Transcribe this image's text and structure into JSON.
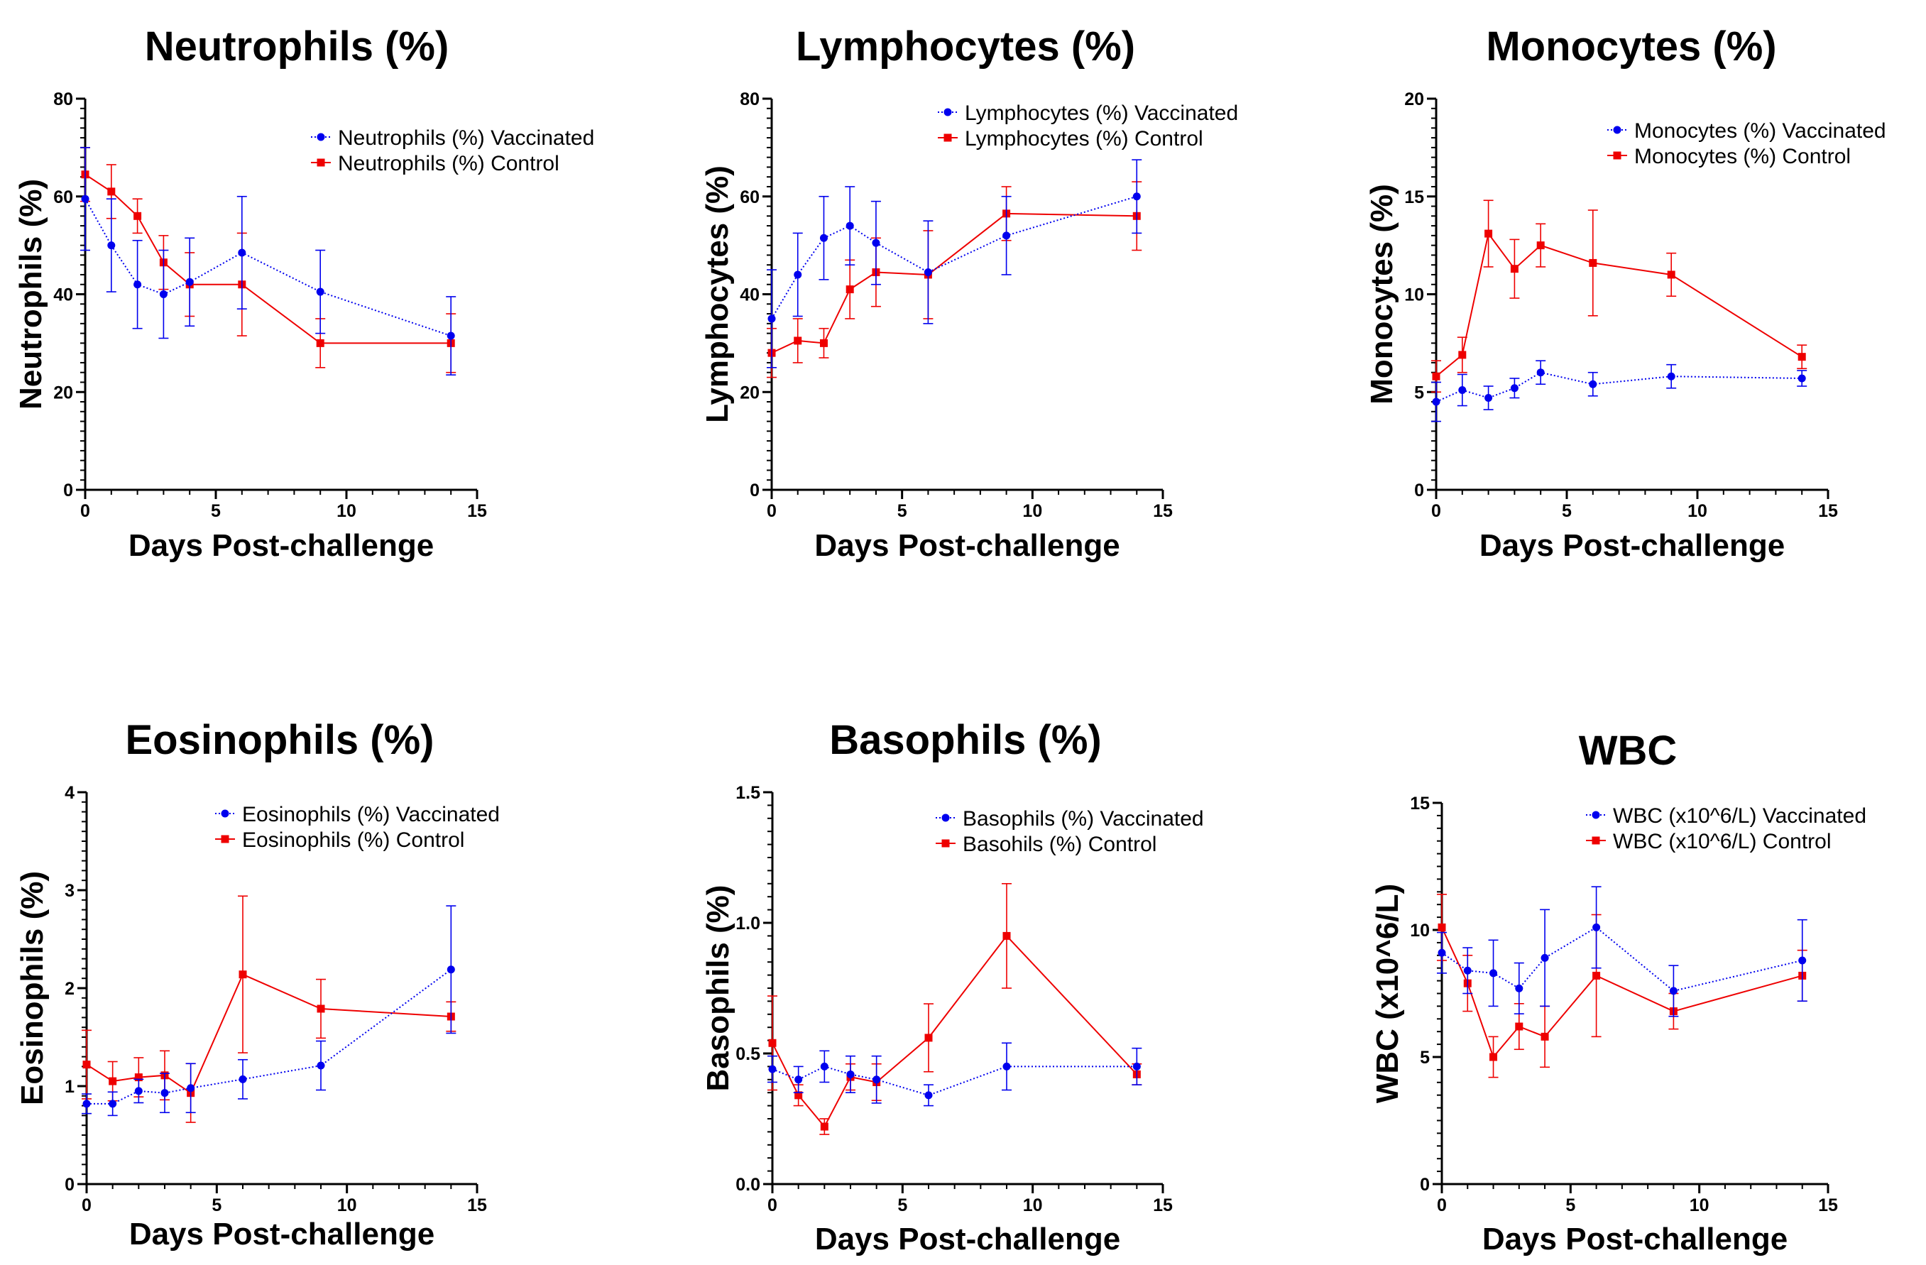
{
  "chart_data": [
    {
      "type": "line",
      "title": "Neutrophils (%)",
      "xlabel": "Days Post-challenge",
      "ylabel": "Neutrophils (%)",
      "xlim": [
        0,
        15
      ],
      "ylim": [
        0,
        80
      ],
      "xticks": [
        "0",
        "5",
        "10",
        "15"
      ],
      "yticks": [
        "0",
        "20",
        "40",
        "60",
        "80"
      ],
      "x": [
        0,
        1,
        2,
        3,
        4,
        6,
        9,
        14
      ],
      "legend_position": "top-right",
      "series": [
        {
          "name": "Neutrophils (%) Vaccinated",
          "color": "#0000ee",
          "marker": "circle",
          "dash": "dotted",
          "values": [
            59.5,
            50,
            42,
            40,
            42.5,
            48.5,
            40.5,
            31.5
          ],
          "errors": [
            10.5,
            9.5,
            9,
            9,
            9,
            11.5,
            8.5,
            8
          ]
        },
        {
          "name": "Neutrophils (%) Control",
          "color": "#ee0000",
          "marker": "square",
          "dash": "solid",
          "values": [
            64.5,
            61,
            56,
            46.5,
            42,
            42,
            30,
            30
          ],
          "errors": [
            5.5,
            5.5,
            3.5,
            5.5,
            6.5,
            10.5,
            5,
            6
          ]
        }
      ]
    },
    {
      "type": "line",
      "title": "Lymphocytes (%)",
      "xlabel": "Days Post-challenge",
      "ylabel": "Lymphocytes (%)",
      "xlim": [
        0,
        15
      ],
      "ylim": [
        0,
        80
      ],
      "xticks": [
        "0",
        "5",
        "10",
        "15"
      ],
      "yticks": [
        "0",
        "20",
        "40",
        "60",
        "80"
      ],
      "x": [
        0,
        1,
        2,
        3,
        4,
        6,
        9,
        14
      ],
      "legend_position": "top-right",
      "series": [
        {
          "name": "Lymphocytes (%) Vaccinated",
          "color": "#0000ee",
          "marker": "circle",
          "dash": "dotted",
          "values": [
            35,
            44,
            51.5,
            54,
            50.5,
            44.5,
            52,
            60
          ],
          "errors": [
            10,
            8.5,
            8.5,
            8,
            8.5,
            10.5,
            8,
            7.5
          ]
        },
        {
          "name": "Lymphocytes (%) Control",
          "color": "#ee0000",
          "marker": "square",
          "dash": "solid",
          "values": [
            28,
            30.5,
            30,
            41,
            44.5,
            44,
            56.5,
            56
          ],
          "errors": [
            5,
            4.5,
            3,
            6,
            7,
            9,
            5.5,
            7
          ]
        }
      ]
    },
    {
      "type": "line",
      "title": "Monocytes (%)",
      "xlabel": "Days Post-challenge",
      "ylabel": "Monocytes (%)",
      "xlim": [
        0,
        15
      ],
      "ylim": [
        0,
        20
      ],
      "xticks": [
        "0",
        "5",
        "10",
        "15"
      ],
      "yticks": [
        "0",
        "5",
        "10",
        "15",
        "20"
      ],
      "x": [
        0,
        1,
        2,
        3,
        4,
        6,
        9,
        14
      ],
      "legend_position": "top-right",
      "series": [
        {
          "name": "Monocytes (%) Vaccinated",
          "color": "#0000ee",
          "marker": "circle",
          "dash": "dotted",
          "values": [
            4.5,
            5.1,
            4.7,
            5.2,
            6.0,
            5.4,
            5.8,
            5.7
          ],
          "errors": [
            1.0,
            0.8,
            0.6,
            0.5,
            0.6,
            0.6,
            0.6,
            0.4
          ]
        },
        {
          "name": "Monocytes (%) Control",
          "color": "#ee0000",
          "marker": "square",
          "dash": "solid",
          "values": [
            5.8,
            6.9,
            13.1,
            11.3,
            12.5,
            11.6,
            11.0,
            6.8
          ],
          "errors": [
            0.8,
            0.9,
            1.7,
            1.5,
            1.1,
            2.7,
            1.1,
            0.6
          ]
        }
      ]
    },
    {
      "type": "line",
      "title": "Eosinophils (%)",
      "xlabel": "Days Post-challenge",
      "ylabel": "Eosinophils (%)",
      "xlim": [
        0,
        15
      ],
      "ylim": [
        0,
        4
      ],
      "xticks": [
        "0",
        "5",
        "10",
        "15"
      ],
      "yticks": [
        "0",
        "1",
        "2",
        "3",
        "4"
      ],
      "x": [
        0,
        1,
        2,
        3,
        4,
        6,
        9,
        14
      ],
      "legend_position": "top-right",
      "series": [
        {
          "name": "Eosinophils (%) Vaccinated",
          "color": "#0000ee",
          "marker": "circle",
          "dash": "dotted",
          "values": [
            0.82,
            0.82,
            0.95,
            0.93,
            0.98,
            1.07,
            1.21,
            2.19
          ],
          "errors": [
            0.1,
            0.12,
            0.12,
            0.2,
            0.25,
            0.2,
            0.25,
            0.65
          ]
        },
        {
          "name": "Eosinophils (%) Control",
          "color": "#ee0000",
          "marker": "square",
          "dash": "solid",
          "values": [
            1.22,
            1.05,
            1.09,
            1.11,
            0.93,
            2.14,
            1.79,
            1.71
          ],
          "errors": [
            0.35,
            0.2,
            0.2,
            0.25,
            0.3,
            0.8,
            0.3,
            0.15
          ]
        }
      ]
    },
    {
      "type": "line",
      "title": "Basophils (%)",
      "xlabel": "Days Post-challenge",
      "ylabel": "Basophils (%)",
      "xlim": [
        0,
        15
      ],
      "ylim": [
        0,
        1.5
      ],
      "xticks": [
        "0",
        "5",
        "10",
        "15"
      ],
      "yticks": [
        "0.0",
        "0.5",
        "1.0",
        "1.5"
      ],
      "x": [
        0,
        1,
        2,
        3,
        4,
        6,
        9,
        14
      ],
      "legend_position": "top-right",
      "series": [
        {
          "name": "Basophils (%) Vaccinated",
          "color": "#0000ee",
          "marker": "circle",
          "dash": "dotted",
          "values": [
            0.44,
            0.4,
            0.45,
            0.42,
            0.4,
            0.34,
            0.45,
            0.45
          ],
          "errors": [
            0.05,
            0.05,
            0.06,
            0.07,
            0.09,
            0.04,
            0.09,
            0.07
          ]
        },
        {
          "name": "Basohils (%) Control",
          "color": "#ee0000",
          "marker": "square",
          "dash": "solid",
          "values": [
            0.54,
            0.34,
            0.22,
            0.41,
            0.39,
            0.56,
            0.95,
            0.42
          ],
          "errors": [
            0.18,
            0.04,
            0.03,
            0.05,
            0.07,
            0.13,
            0.2,
            0.04
          ]
        }
      ]
    },
    {
      "type": "line",
      "title": "WBC",
      "xlabel": "Days Post-challenge",
      "ylabel": "WBC (x10^6/L)",
      "xlim": [
        0,
        15
      ],
      "ylim": [
        0,
        15
      ],
      "xticks": [
        "0",
        "5",
        "10",
        "15"
      ],
      "yticks": [
        "0",
        "5",
        "10",
        "15"
      ],
      "x": [
        0,
        1,
        2,
        3,
        4,
        6,
        9,
        14
      ],
      "legend_position": "top-right",
      "series": [
        {
          "name": "WBC (x10^6/L) Vaccinated",
          "color": "#0000ee",
          "marker": "circle",
          "dash": "dotted",
          "values": [
            9.1,
            8.4,
            8.3,
            7.7,
            8.9,
            10.1,
            7.6,
            8.8
          ],
          "errors": [
            0.8,
            0.9,
            1.3,
            1.0,
            1.9,
            1.6,
            1.0,
            1.6
          ]
        },
        {
          "name": "WBC (x10^6/L) Control",
          "color": "#ee0000",
          "marker": "square",
          "dash": "solid",
          "values": [
            10.1,
            7.9,
            5.0,
            6.2,
            5.8,
            8.2,
            6.8,
            8.2
          ],
          "errors": [
            1.3,
            1.1,
            0.8,
            0.9,
            1.2,
            2.4,
            0.7,
            1.0
          ]
        }
      ]
    }
  ]
}
